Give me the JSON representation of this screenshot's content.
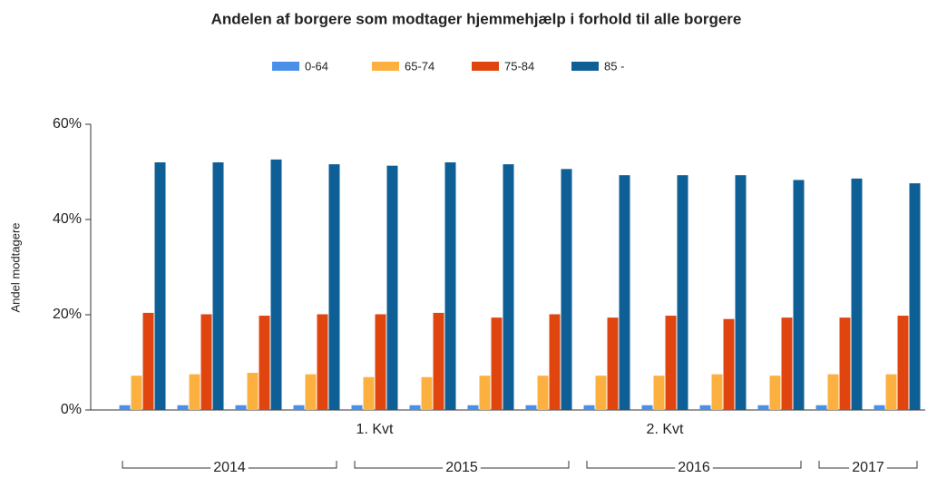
{
  "chart_data": {
    "type": "bar",
    "title": "Andelen af borgere som modtager hjemmehjælp i forhold til alle borgere",
    "y_label": "Andel modtagere",
    "categories": [
      null,
      null,
      null,
      null,
      "1. Kvt",
      null,
      null,
      null,
      null,
      "2. Kvt",
      null,
      null,
      null,
      null
    ],
    "x_groups": [
      {
        "label": "2014",
        "start": 0,
        "end": 3
      },
      {
        "label": "2015",
        "start": 4,
        "end": 7
      },
      {
        "label": "2016",
        "start": 8,
        "end": 11
      },
      {
        "label": "2017",
        "start": 12,
        "end": 13
      }
    ],
    "series": [
      {
        "name": "0-64",
        "color": "#4a90e8",
        "values": [
          1,
          1,
          1,
          1,
          1,
          1,
          1,
          1,
          1,
          1,
          1,
          1,
          1,
          1
        ]
      },
      {
        "name": "65-74",
        "color": "#fbb040",
        "values": [
          7.2,
          7.5,
          7.8,
          7.5,
          6.9,
          6.9,
          7.2,
          7.2,
          7.2,
          7.2,
          7.5,
          7.2,
          7.5,
          7.5
        ]
      },
      {
        "name": "75-84",
        "color": "#e0450f",
        "values": [
          20.4,
          20.1,
          19.8,
          20.1,
          20.1,
          20.4,
          19.4,
          20.1,
          19.4,
          19.8,
          19.1,
          19.4,
          19.4,
          19.8
        ]
      },
      {
        "name": "85 -",
        "color": "#0e5f96",
        "values": [
          52,
          52,
          52.6,
          51.6,
          51.3,
          52,
          51.6,
          50.6,
          49.3,
          49.3,
          49.3,
          48.3,
          48.6,
          47.6
        ]
      }
    ],
    "ylim": [
      0,
      60
    ],
    "yticks": [
      {
        "value": 0,
        "label": "0%"
      },
      {
        "value": 20,
        "label": "20%"
      },
      {
        "value": 40,
        "label": "40%"
      },
      {
        "value": 60,
        "label": "60%"
      }
    ],
    "grid": false
  }
}
